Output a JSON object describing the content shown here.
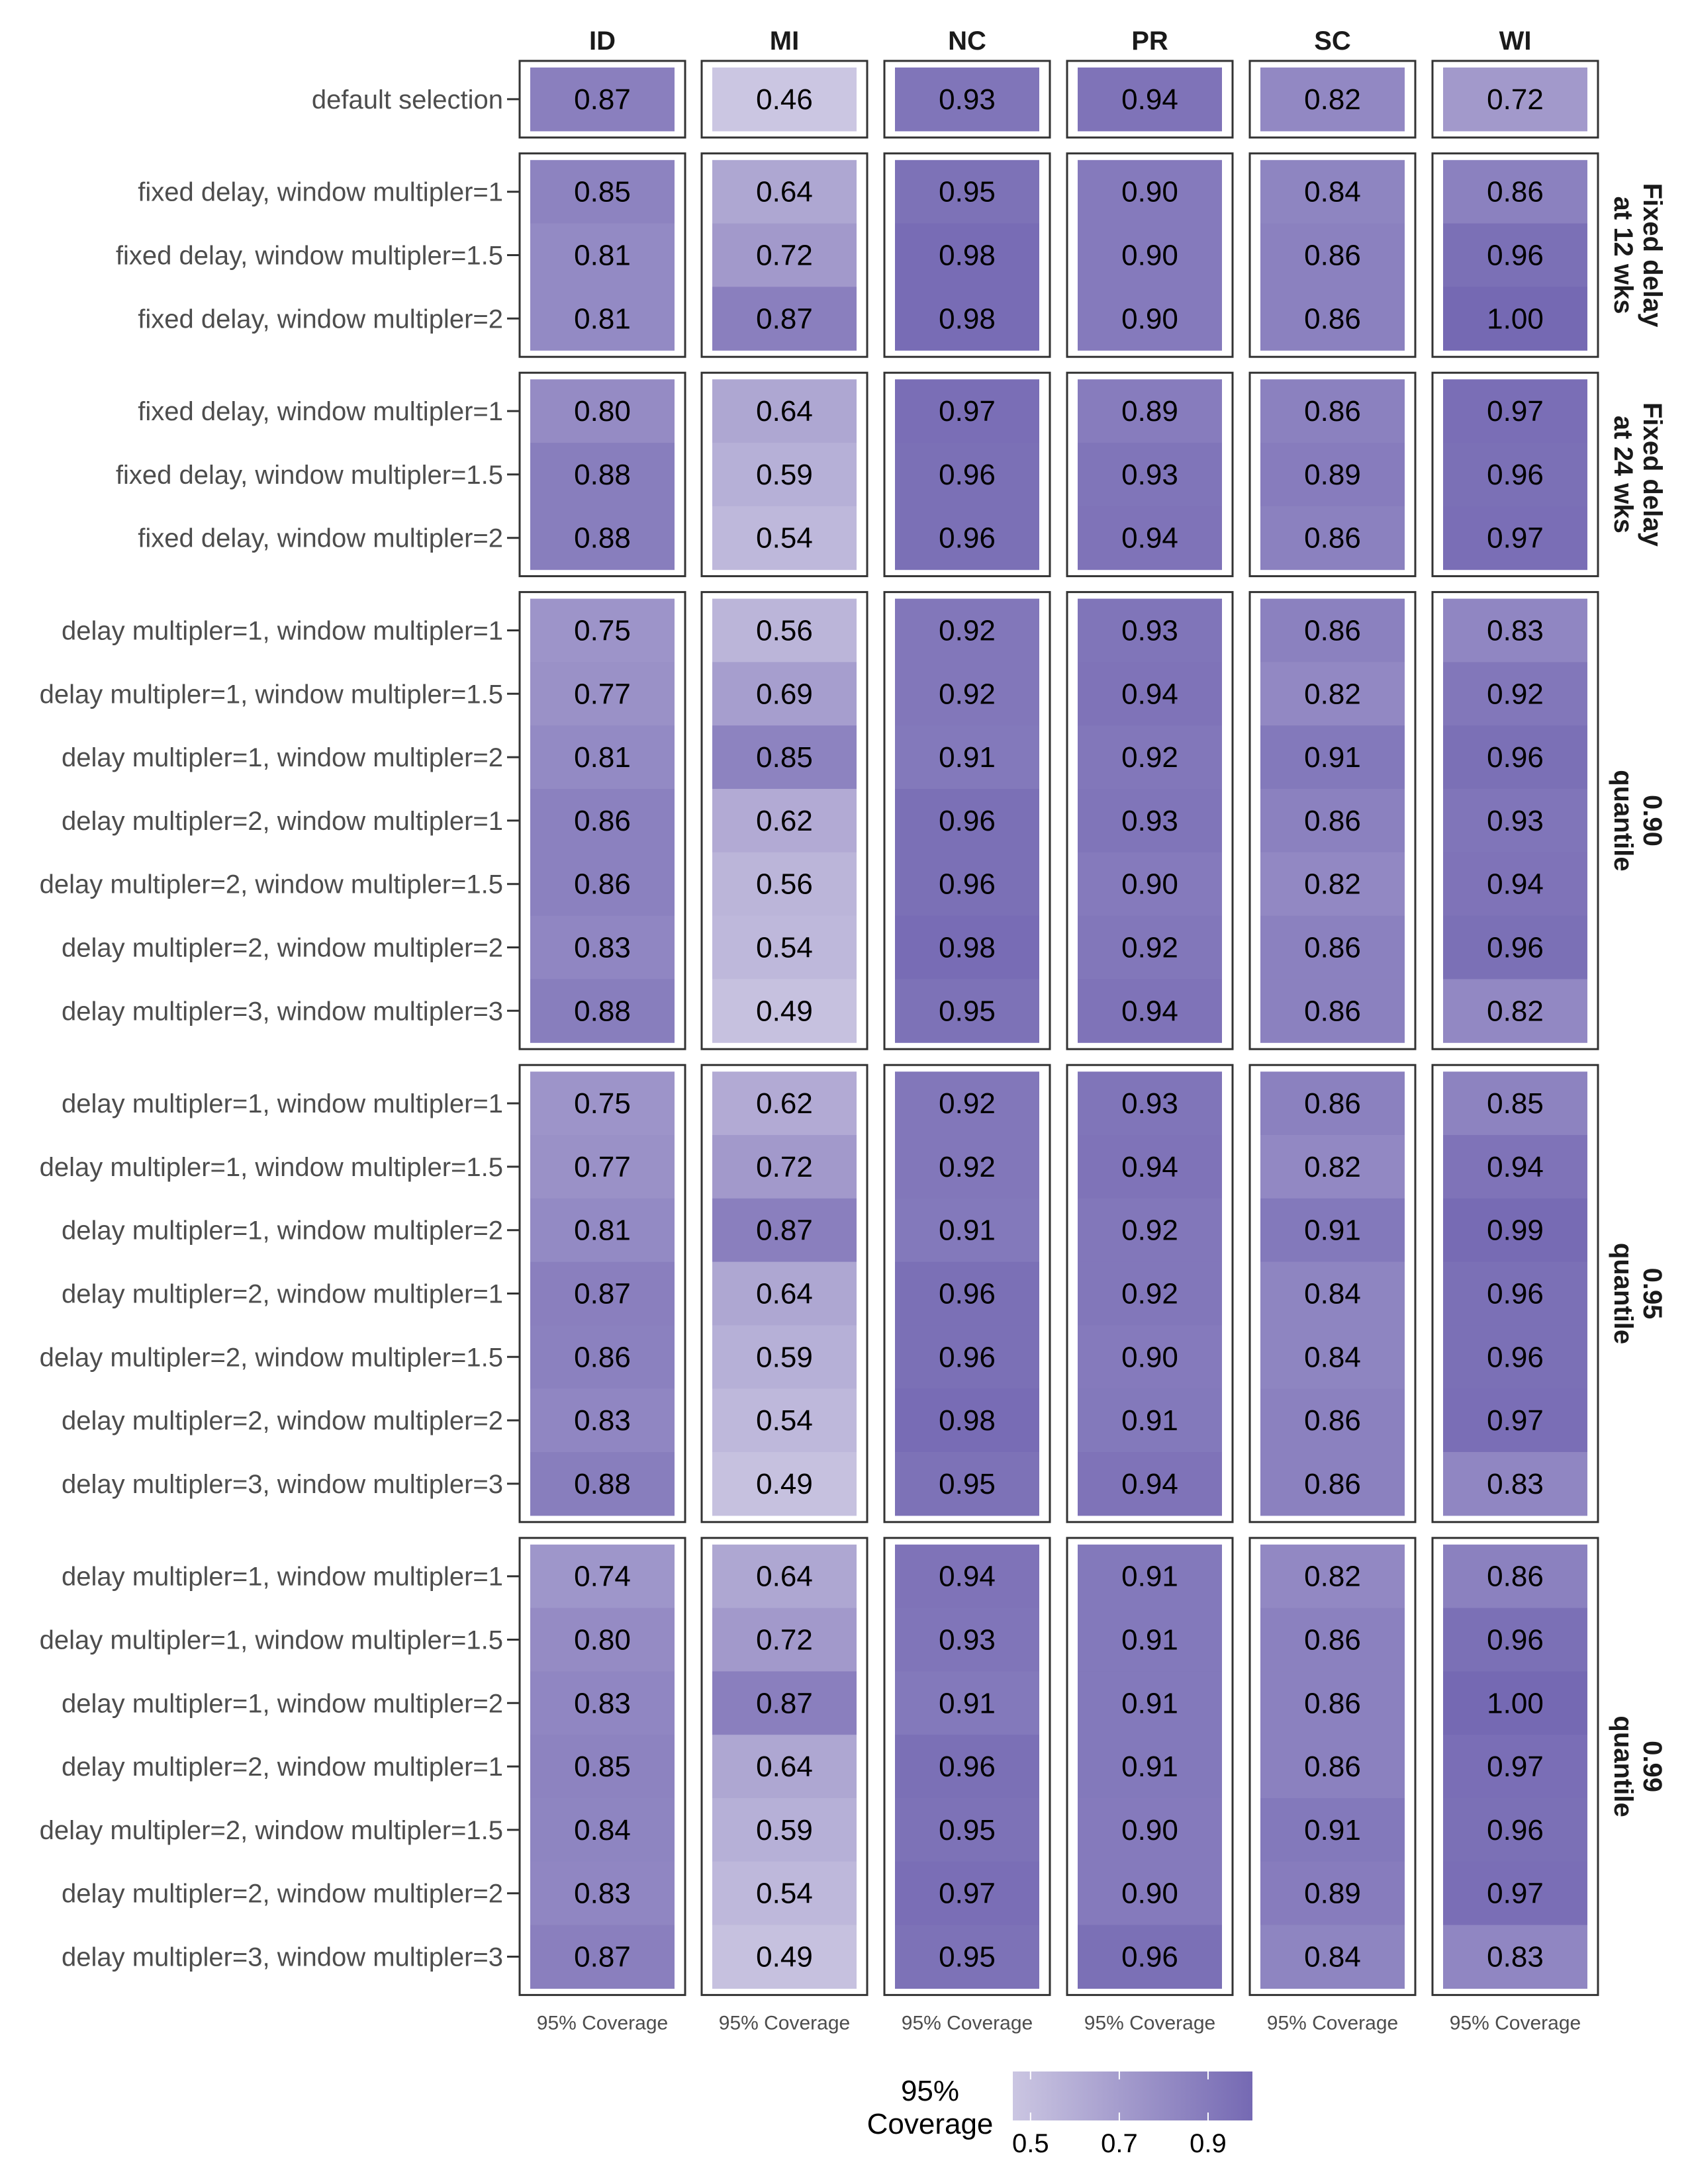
{
  "chart_data": {
    "type": "heatmap",
    "columns": [
      "ID",
      "MI",
      "NC",
      "PR",
      "SC",
      "WI"
    ],
    "x_axis_label": "95% Coverage",
    "legend": {
      "title_lines": [
        "95%",
        "Coverage"
      ],
      "ticks": [
        "0.5",
        "0.7",
        "0.9"
      ],
      "tick_values": [
        0.5,
        0.7,
        0.9
      ],
      "range": [
        0.46,
        1.0
      ],
      "low_color": "#cbc6e2",
      "high_color": "#7569b3",
      "placement": "bottom"
    },
    "groups": [
      {
        "strip": [],
        "rows": [
          {
            "label": "default selection",
            "values": [
              "0.87",
              "0.46",
              "0.93",
              "0.94",
              "0.82",
              "0.72"
            ]
          }
        ]
      },
      {
        "strip": [
          "Fixed delay",
          "at 12 wks"
        ],
        "rows": [
          {
            "label": "fixed delay, window multipler=1",
            "values": [
              "0.85",
              "0.64",
              "0.95",
              "0.90",
              "0.84",
              "0.86"
            ]
          },
          {
            "label": "fixed delay, window multipler=1.5",
            "values": [
              "0.81",
              "0.72",
              "0.98",
              "0.90",
              "0.86",
              "0.96"
            ]
          },
          {
            "label": "fixed delay, window multipler=2",
            "values": [
              "0.81",
              "0.87",
              "0.98",
              "0.90",
              "0.86",
              "1.00"
            ]
          }
        ]
      },
      {
        "strip": [
          "Fixed delay",
          "at 24 wks"
        ],
        "rows": [
          {
            "label": "fixed delay, window multipler=1",
            "values": [
              "0.80",
              "0.64",
              "0.97",
              "0.89",
              "0.86",
              "0.97"
            ]
          },
          {
            "label": "fixed delay, window multipler=1.5",
            "values": [
              "0.88",
              "0.59",
              "0.96",
              "0.93",
              "0.89",
              "0.96"
            ]
          },
          {
            "label": "fixed delay, window multipler=2",
            "values": [
              "0.88",
              "0.54",
              "0.96",
              "0.94",
              "0.86",
              "0.97"
            ]
          }
        ]
      },
      {
        "strip": [
          "0.90",
          "quantile"
        ],
        "rows": [
          {
            "label": "delay multipler=1, window multipler=1",
            "values": [
              "0.75",
              "0.56",
              "0.92",
              "0.93",
              "0.86",
              "0.83"
            ]
          },
          {
            "label": "delay multipler=1, window multipler=1.5",
            "values": [
              "0.77",
              "0.69",
              "0.92",
              "0.94",
              "0.82",
              "0.92"
            ]
          },
          {
            "label": "delay multipler=1, window multipler=2",
            "values": [
              "0.81",
              "0.85",
              "0.91",
              "0.92",
              "0.91",
              "0.96"
            ]
          },
          {
            "label": "delay multipler=2, window multipler=1",
            "values": [
              "0.86",
              "0.62",
              "0.96",
              "0.93",
              "0.86",
              "0.93"
            ]
          },
          {
            "label": "delay multipler=2, window multipler=1.5",
            "values": [
              "0.86",
              "0.56",
              "0.96",
              "0.90",
              "0.82",
              "0.94"
            ]
          },
          {
            "label": "delay multipler=2, window multipler=2",
            "values": [
              "0.83",
              "0.54",
              "0.98",
              "0.92",
              "0.86",
              "0.96"
            ]
          },
          {
            "label": "delay multipler=3, window multipler=3",
            "values": [
              "0.88",
              "0.49",
              "0.95",
              "0.94",
              "0.86",
              "0.82"
            ]
          }
        ]
      },
      {
        "strip": [
          "0.95",
          "quantile"
        ],
        "rows": [
          {
            "label": "delay multipler=1, window multipler=1",
            "values": [
              "0.75",
              "0.62",
              "0.92",
              "0.93",
              "0.86",
              "0.85"
            ]
          },
          {
            "label": "delay multipler=1, window multipler=1.5",
            "values": [
              "0.77",
              "0.72",
              "0.92",
              "0.94",
              "0.82",
              "0.94"
            ]
          },
          {
            "label": "delay multipler=1, window multipler=2",
            "values": [
              "0.81",
              "0.87",
              "0.91",
              "0.92",
              "0.91",
              "0.99"
            ]
          },
          {
            "label": "delay multipler=2, window multipler=1",
            "values": [
              "0.87",
              "0.64",
              "0.96",
              "0.92",
              "0.84",
              "0.96"
            ]
          },
          {
            "label": "delay multipler=2, window multipler=1.5",
            "values": [
              "0.86",
              "0.59",
              "0.96",
              "0.90",
              "0.84",
              "0.96"
            ]
          },
          {
            "label": "delay multipler=2, window multipler=2",
            "values": [
              "0.83",
              "0.54",
              "0.98",
              "0.91",
              "0.86",
              "0.97"
            ]
          },
          {
            "label": "delay multipler=3, window multipler=3",
            "values": [
              "0.88",
              "0.49",
              "0.95",
              "0.94",
              "0.86",
              "0.83"
            ]
          }
        ]
      },
      {
        "strip": [
          "0.99",
          "quantile"
        ],
        "rows": [
          {
            "label": "delay multipler=1, window multipler=1",
            "values": [
              "0.74",
              "0.64",
              "0.94",
              "0.91",
              "0.82",
              "0.86"
            ]
          },
          {
            "label": "delay multipler=1, window multipler=1.5",
            "values": [
              "0.80",
              "0.72",
              "0.93",
              "0.91",
              "0.86",
              "0.96"
            ]
          },
          {
            "label": "delay multipler=1, window multipler=2",
            "values": [
              "0.83",
              "0.87",
              "0.91",
              "0.91",
              "0.86",
              "1.00"
            ]
          },
          {
            "label": "delay multipler=2, window multipler=1",
            "values": [
              "0.85",
              "0.64",
              "0.96",
              "0.91",
              "0.86",
              "0.97"
            ]
          },
          {
            "label": "delay multipler=2, window multipler=1.5",
            "values": [
              "0.84",
              "0.59",
              "0.95",
              "0.90",
              "0.91",
              "0.96"
            ]
          },
          {
            "label": "delay multipler=2, window multipler=2",
            "values": [
              "0.83",
              "0.54",
              "0.97",
              "0.90",
              "0.89",
              "0.97"
            ]
          },
          {
            "label": "delay multipler=3, window multipler=3",
            "values": [
              "0.87",
              "0.49",
              "0.95",
              "0.96",
              "0.84",
              "0.83"
            ]
          }
        ]
      }
    ]
  }
}
